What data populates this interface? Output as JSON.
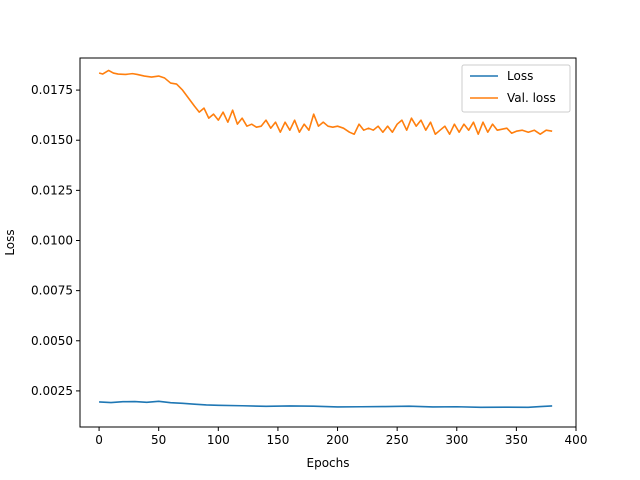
{
  "chart_data": {
    "type": "line",
    "xlabel": "Epochs",
    "ylabel": "Loss",
    "xlim": [
      -16,
      400
    ],
    "ylim": [
      0.0007,
      0.0191
    ],
    "x_ticks": [
      0,
      50,
      100,
      150,
      200,
      250,
      300,
      350,
      400
    ],
    "x_tick_labels": [
      "0",
      "50",
      "100",
      "150",
      "200",
      "250",
      "300",
      "350",
      "400"
    ],
    "y_ticks": [
      0.0025,
      0.005,
      0.0075,
      0.01,
      0.0125,
      0.015,
      0.0175
    ],
    "y_tick_labels": [
      "0.0025",
      "0.0050",
      "0.0075",
      "0.0100",
      "0.0125",
      "0.0150",
      "0.0175"
    ],
    "grid": false,
    "legend_position": "top-right",
    "series": [
      {
        "name": "Loss",
        "color": "#1f77b4",
        "x": [
          0,
          10,
          20,
          30,
          40,
          50,
          60,
          70,
          80,
          90,
          100,
          120,
          140,
          160,
          180,
          200,
          220,
          240,
          260,
          280,
          300,
          320,
          340,
          360,
          370,
          380
        ],
        "y": [
          0.00195,
          0.00192,
          0.00196,
          0.00197,
          0.00193,
          0.00198,
          0.00191,
          0.00188,
          0.00184,
          0.0018,
          0.00178,
          0.00176,
          0.00173,
          0.00175,
          0.00174,
          0.0017,
          0.00171,
          0.00172,
          0.00174,
          0.0017,
          0.00171,
          0.00168,
          0.00169,
          0.00168,
          0.00172,
          0.00175
        ]
      },
      {
        "name": "Val. loss",
        "color": "#ff7f0e",
        "x": [
          0,
          3,
          8,
          12,
          16,
          22,
          28,
          32,
          38,
          44,
          50,
          55,
          60,
          65,
          70,
          75,
          80,
          84,
          88,
          92,
          96,
          100,
          104,
          108,
          112,
          116,
          120,
          124,
          128,
          132,
          136,
          140,
          144,
          148,
          152,
          156,
          160,
          164,
          168,
          172,
          176,
          180,
          184,
          188,
          192,
          196,
          200,
          205,
          210,
          214,
          218,
          222,
          226,
          230,
          234,
          238,
          242,
          246,
          250,
          254,
          258,
          262,
          266,
          270,
          274,
          278,
          282,
          286,
          290,
          294,
          298,
          302,
          306,
          310,
          314,
          318,
          322,
          326,
          330,
          334,
          338,
          342,
          346,
          350,
          355,
          360,
          365,
          370,
          375,
          380
        ],
        "y": [
          0.01835,
          0.0183,
          0.01848,
          0.01835,
          0.0183,
          0.01828,
          0.01832,
          0.01828,
          0.0182,
          0.01815,
          0.0182,
          0.0181,
          0.01785,
          0.0178,
          0.0175,
          0.0171,
          0.0167,
          0.0164,
          0.0166,
          0.0161,
          0.0163,
          0.016,
          0.0164,
          0.0159,
          0.0165,
          0.0158,
          0.0161,
          0.0157,
          0.0158,
          0.01565,
          0.0157,
          0.016,
          0.0156,
          0.0159,
          0.0154,
          0.0159,
          0.0155,
          0.016,
          0.0154,
          0.0158,
          0.0155,
          0.0163,
          0.0157,
          0.0159,
          0.0157,
          0.01565,
          0.0157,
          0.0156,
          0.0154,
          0.0153,
          0.0158,
          0.0155,
          0.0156,
          0.0155,
          0.0157,
          0.0154,
          0.0157,
          0.0154,
          0.0158,
          0.016,
          0.0155,
          0.0161,
          0.0157,
          0.016,
          0.0155,
          0.0159,
          0.0153,
          0.0155,
          0.0157,
          0.0153,
          0.0158,
          0.0154,
          0.0158,
          0.0155,
          0.0159,
          0.0153,
          0.0159,
          0.0154,
          0.0158,
          0.0155,
          0.01555,
          0.0156,
          0.01535,
          0.01545,
          0.0155,
          0.0154,
          0.0155,
          0.0153,
          0.0155,
          0.01545
        ]
      }
    ]
  }
}
